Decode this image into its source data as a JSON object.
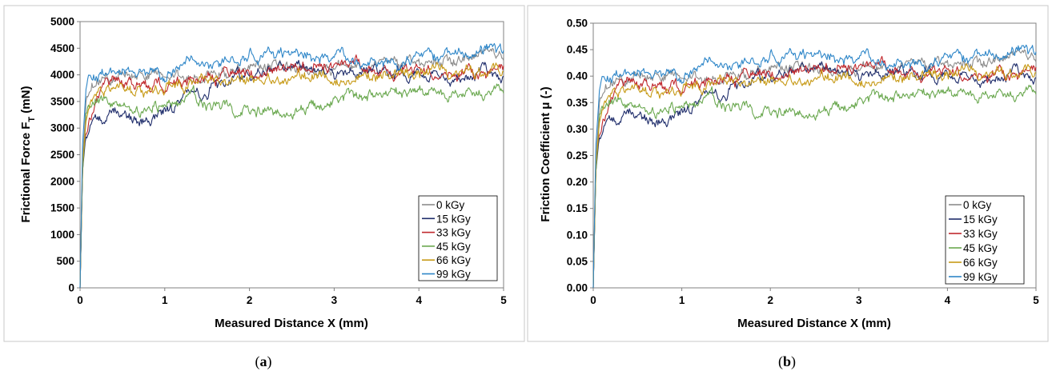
{
  "chart_data": [
    {
      "type": "line",
      "caption_letter": "a",
      "caption_open": "(",
      "caption_close": ")",
      "xlabel": "Measured Distance X (mm)",
      "ylabel_main": "Frictional Force F",
      "ylabel_sub": "T",
      "ylabel_unit": " (mN)",
      "xlim": [
        0,
        5
      ],
      "ylim": [
        0,
        5000
      ],
      "x_ticks": [
        "0",
        "1",
        "2",
        "3",
        "4",
        "5"
      ],
      "y_ticks": [
        "0",
        "500",
        "1000",
        "1500",
        "2000",
        "2500",
        "3000",
        "3500",
        "4000",
        "4500",
        "5000"
      ],
      "legend_position": "bottom-right",
      "grid": false,
      "series_note": "values are approximate trend anchors; the drawn curves add small deterministic roughness",
      "series": [
        {
          "name": "0 kGy",
          "color": "#8c8c8c",
          "x": [
            0,
            0.03,
            0.07,
            0.12,
            0.2,
            0.3,
            0.5,
            0.8,
            1.0,
            1.3,
            1.6,
            2.0,
            2.4,
            2.8,
            3.2,
            3.6,
            4.0,
            4.4,
            4.8,
            5.0
          ],
          "values": [
            0,
            2400,
            3400,
            3750,
            3900,
            3950,
            3980,
            4050,
            4000,
            3950,
            4050,
            4150,
            4200,
            4100,
            4150,
            4250,
            4200,
            4300,
            4350,
            4400
          ]
        },
        {
          "name": "15 kGy",
          "color": "#1f2d6b",
          "x": [
            0,
            0.03,
            0.07,
            0.12,
            0.2,
            0.3,
            0.5,
            0.8,
            1.0,
            1.3,
            1.6,
            2.0,
            2.4,
            2.8,
            3.2,
            3.6,
            4.0,
            4.4,
            4.8,
            5.0
          ],
          "values": [
            0,
            2200,
            2900,
            3050,
            3150,
            3250,
            3250,
            3150,
            3300,
            3550,
            3800,
            4100,
            4150,
            4050,
            4100,
            4000,
            4050,
            3950,
            4050,
            4000
          ]
        },
        {
          "name": "33 kGy",
          "color": "#c0282d",
          "x": [
            0,
            0.03,
            0.07,
            0.12,
            0.2,
            0.3,
            0.5,
            0.8,
            1.0,
            1.3,
            1.6,
            2.0,
            2.4,
            2.8,
            3.2,
            3.6,
            4.0,
            4.4,
            4.8,
            5.0
          ],
          "values": [
            0,
            2300,
            3000,
            3250,
            3600,
            3800,
            3850,
            3750,
            3800,
            3900,
            3950,
            4050,
            4150,
            4200,
            4200,
            4000,
            4050,
            4100,
            3950,
            4100
          ]
        },
        {
          "name": "45 kGy",
          "color": "#6aa84f",
          "x": [
            0,
            0.03,
            0.07,
            0.12,
            0.2,
            0.3,
            0.5,
            0.8,
            1.0,
            1.3,
            1.6,
            2.0,
            2.4,
            2.8,
            3.2,
            3.6,
            4.0,
            4.4,
            4.8,
            5.0
          ],
          "values": [
            0,
            2200,
            3100,
            3350,
            3500,
            3550,
            3450,
            3300,
            3450,
            3550,
            3450,
            3350,
            3300,
            3400,
            3550,
            3650,
            3650,
            3700,
            3600,
            3750
          ]
        },
        {
          "name": "66 kGy",
          "color": "#c79a16",
          "x": [
            0,
            0.03,
            0.07,
            0.12,
            0.2,
            0.3,
            0.5,
            0.8,
            1.0,
            1.3,
            1.6,
            2.0,
            2.4,
            2.8,
            3.2,
            3.6,
            4.0,
            4.4,
            4.8,
            5.0
          ],
          "values": [
            0,
            2300,
            3150,
            3450,
            3600,
            3700,
            3750,
            3700,
            3800,
            3850,
            3900,
            3950,
            3950,
            4000,
            3900,
            4000,
            4050,
            4050,
            4100,
            4050
          ]
        },
        {
          "name": "99 kGy",
          "color": "#2e86c8",
          "x": [
            0,
            0.03,
            0.07,
            0.12,
            0.2,
            0.3,
            0.5,
            0.8,
            1.0,
            1.3,
            1.6,
            2.0,
            2.4,
            2.8,
            3.2,
            3.6,
            4.0,
            4.4,
            4.8,
            5.0
          ],
          "values": [
            0,
            2700,
            3700,
            3950,
            4000,
            4050,
            4050,
            4050,
            4000,
            4300,
            4200,
            4450,
            4350,
            4350,
            4250,
            4250,
            4300,
            4350,
            4550,
            4400
          ]
        }
      ]
    },
    {
      "type": "line",
      "caption_letter": "b",
      "caption_open": "(",
      "caption_close": ")",
      "xlabel": "Measured Distance X (mm)",
      "ylabel_main": "Friction Coefficient μ (-)",
      "ylabel_sub": "",
      "ylabel_unit": "",
      "xlim": [
        0,
        5
      ],
      "ylim": [
        0,
        0.5
      ],
      "x_ticks": [
        "0",
        "1",
        "2",
        "3",
        "4",
        "5"
      ],
      "y_ticks": [
        "0.00",
        "0.05",
        "0.10",
        "0.15",
        "0.20",
        "0.25",
        "0.30",
        "0.35",
        "0.40",
        "0.45",
        "0.50"
      ],
      "legend_position": "bottom-right",
      "grid": false,
      "series_note": "values are approximate trend anchors; the drawn curves add small deterministic roughness",
      "series": [
        {
          "name": "0 kGy",
          "color": "#8c8c8c",
          "x": [
            0,
            0.03,
            0.07,
            0.12,
            0.2,
            0.3,
            0.5,
            0.8,
            1.0,
            1.3,
            1.6,
            2.0,
            2.4,
            2.8,
            3.2,
            3.6,
            4.0,
            4.4,
            4.8,
            5.0
          ],
          "values": [
            0,
            0.24,
            0.34,
            0.375,
            0.39,
            0.395,
            0.398,
            0.405,
            0.4,
            0.395,
            0.405,
            0.415,
            0.42,
            0.41,
            0.415,
            0.425,
            0.42,
            0.43,
            0.435,
            0.44
          ]
        },
        {
          "name": "15 kGy",
          "color": "#1f2d6b",
          "x": [
            0,
            0.03,
            0.07,
            0.12,
            0.2,
            0.3,
            0.5,
            0.8,
            1.0,
            1.3,
            1.6,
            2.0,
            2.4,
            2.8,
            3.2,
            3.6,
            4.0,
            4.4,
            4.8,
            5.0
          ],
          "values": [
            0,
            0.22,
            0.29,
            0.305,
            0.315,
            0.325,
            0.325,
            0.315,
            0.33,
            0.355,
            0.38,
            0.41,
            0.415,
            0.405,
            0.41,
            0.4,
            0.405,
            0.395,
            0.405,
            0.4
          ]
        },
        {
          "name": "33 kGy",
          "color": "#c0282d",
          "x": [
            0,
            0.03,
            0.07,
            0.12,
            0.2,
            0.3,
            0.5,
            0.8,
            1.0,
            1.3,
            1.6,
            2.0,
            2.4,
            2.8,
            3.2,
            3.6,
            4.0,
            4.4,
            4.8,
            5.0
          ],
          "values": [
            0,
            0.23,
            0.3,
            0.325,
            0.36,
            0.38,
            0.385,
            0.375,
            0.38,
            0.39,
            0.395,
            0.405,
            0.415,
            0.42,
            0.42,
            0.4,
            0.405,
            0.41,
            0.395,
            0.41
          ]
        },
        {
          "name": "45 kGy",
          "color": "#6aa84f",
          "x": [
            0,
            0.03,
            0.07,
            0.12,
            0.2,
            0.3,
            0.5,
            0.8,
            1.0,
            1.3,
            1.6,
            2.0,
            2.4,
            2.8,
            3.2,
            3.6,
            4.0,
            4.4,
            4.8,
            5.0
          ],
          "values": [
            0,
            0.22,
            0.31,
            0.335,
            0.35,
            0.355,
            0.345,
            0.33,
            0.345,
            0.355,
            0.345,
            0.335,
            0.33,
            0.34,
            0.355,
            0.365,
            0.365,
            0.37,
            0.36,
            0.375
          ]
        },
        {
          "name": "66 kGy",
          "color": "#c79a16",
          "x": [
            0,
            0.03,
            0.07,
            0.12,
            0.2,
            0.3,
            0.5,
            0.8,
            1.0,
            1.3,
            1.6,
            2.0,
            2.4,
            2.8,
            3.2,
            3.6,
            4.0,
            4.4,
            4.8,
            5.0
          ],
          "values": [
            0,
            0.23,
            0.315,
            0.345,
            0.36,
            0.37,
            0.375,
            0.37,
            0.38,
            0.385,
            0.39,
            0.395,
            0.395,
            0.4,
            0.39,
            0.4,
            0.405,
            0.405,
            0.41,
            0.405
          ]
        },
        {
          "name": "99 kGy",
          "color": "#2e86c8",
          "x": [
            0,
            0.03,
            0.07,
            0.12,
            0.2,
            0.3,
            0.5,
            0.8,
            1.0,
            1.3,
            1.6,
            2.0,
            2.4,
            2.8,
            3.2,
            3.6,
            4.0,
            4.4,
            4.8,
            5.0
          ],
          "values": [
            0,
            0.27,
            0.37,
            0.395,
            0.4,
            0.405,
            0.405,
            0.405,
            0.4,
            0.43,
            0.42,
            0.445,
            0.435,
            0.435,
            0.425,
            0.425,
            0.43,
            0.435,
            0.455,
            0.44
          ]
        }
      ]
    }
  ]
}
